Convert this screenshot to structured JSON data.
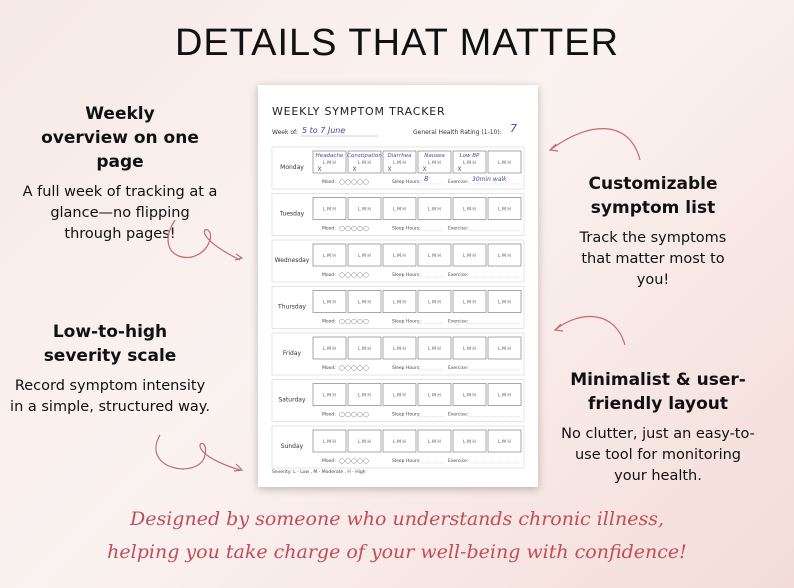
{
  "header": {
    "title": "DETAILS THAT MATTER"
  },
  "features": [
    {
      "title": "Weekly overview on one page",
      "text": "A full week of tracking at a glance—no flipping through pages!"
    },
    {
      "title": "Low-to-high severity scale",
      "text": "Record symptom intensity in a simple, structured way."
    },
    {
      "title": "Customizable symptom list",
      "text": "Track the symptoms that matter most to you!"
    },
    {
      "title": "Minimalist & user-friendly layout",
      "text": "No clutter, just an easy-to-use tool for monitoring your health."
    }
  ],
  "tracker": {
    "title": "WEEKLY SYMPTOM TRACKER",
    "week_label": "Week of:",
    "week_value": "5 to 7 June",
    "rating_label": "General Health Rating (1-10):",
    "rating_value": "7",
    "scale": "L  M  H",
    "mood_label": "Mood:",
    "sleep_label": "Sleep Hours:",
    "exercise_label": "Exercise:",
    "days": [
      "Monday",
      "Tuesday",
      "Wednesday",
      "Thursday",
      "Friday",
      "Saturday",
      "Sunday"
    ],
    "monday": {
      "symptoms": [
        "Headache",
        "Constipation",
        "Diarrhea",
        "Nausea",
        "Low BP"
      ],
      "mark": "X",
      "sleep_value": "8",
      "exercise_value": "30min walk"
    },
    "footer": "Severity: L - Low , M - Moderate , H - High"
  },
  "quote": [
    "Designed by someone who understands chronic illness,",
    "helping you take charge of your well-being with confidence!"
  ]
}
